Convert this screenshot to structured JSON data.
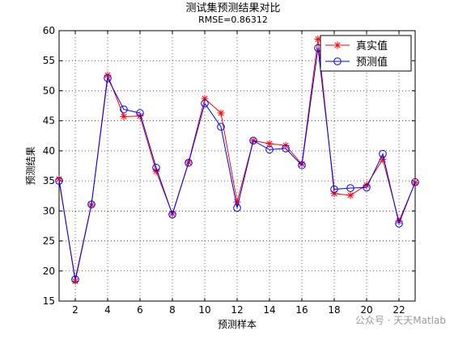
{
  "chart_data": {
    "type": "line",
    "title": "测试集预测结果对比",
    "subtitle": "RMSE=0.86312",
    "xlabel": "预测样本",
    "ylabel": "预测结果",
    "xlim": [
      1,
      23
    ],
    "ylim": [
      15,
      60
    ],
    "x_ticks": [
      2,
      4,
      6,
      8,
      10,
      12,
      14,
      16,
      18,
      20,
      22
    ],
    "y_ticks": [
      15,
      20,
      25,
      30,
      35,
      40,
      45,
      50,
      55,
      60
    ],
    "grid": true,
    "legend_position": "top-right",
    "x": [
      1,
      2,
      3,
      4,
      5,
      6,
      7,
      8,
      9,
      10,
      11,
      12,
      13,
      14,
      15,
      16,
      17,
      18,
      19,
      20,
      21,
      22,
      23
    ],
    "series": [
      {
        "name": "真实值",
        "color": "#ff0000",
        "marker": "star",
        "values": [
          35.3,
          18.3,
          31.0,
          52.6,
          45.7,
          45.8,
          36.6,
          29.5,
          38.1,
          48.7,
          46.3,
          31.5,
          41.7,
          41.2,
          40.9,
          37.8,
          58.6,
          32.9,
          32.6,
          34.3,
          38.6,
          28.3,
          34.7
        ]
      },
      {
        "name": "预测值",
        "color": "#0000ff",
        "marker": "circle",
        "values": [
          35.0,
          18.6,
          31.1,
          52.1,
          46.9,
          46.3,
          37.2,
          29.4,
          38.0,
          47.9,
          44.0,
          30.5,
          41.7,
          40.2,
          40.4,
          37.6,
          57.1,
          33.6,
          33.8,
          33.9,
          39.5,
          27.9,
          34.8
        ]
      }
    ]
  },
  "watermark": "公众号 · 天天Matlab"
}
